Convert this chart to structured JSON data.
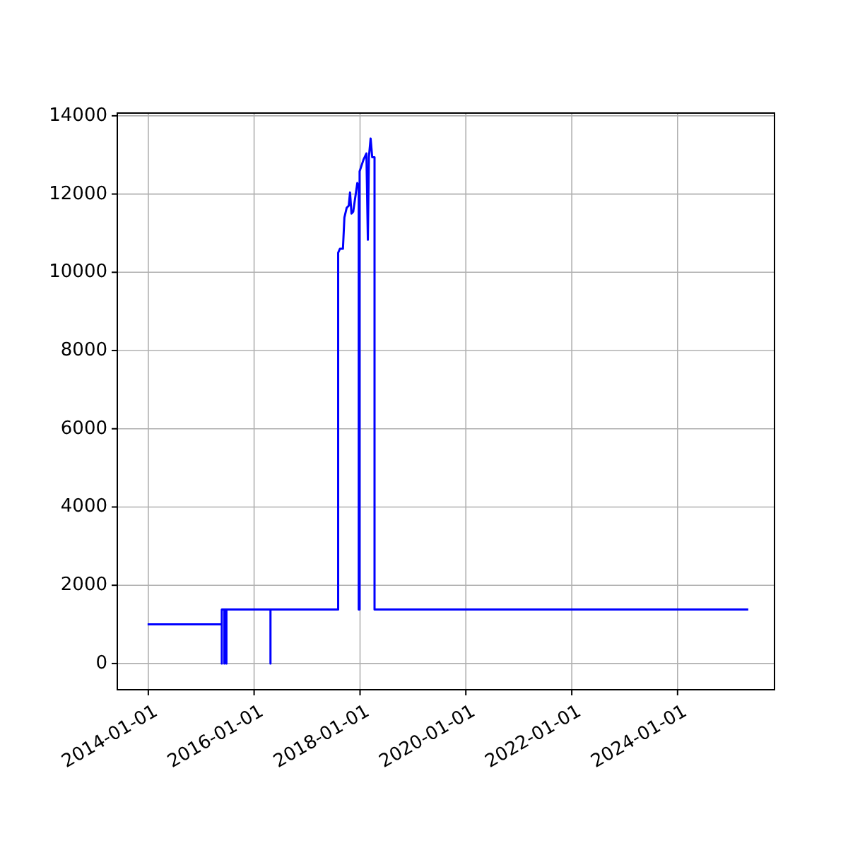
{
  "chart_data": {
    "type": "line",
    "grid": true,
    "xlim": [
      "2013-06-01",
      "2025-10-31"
    ],
    "ylim": [
      -670,
      14070
    ],
    "xticks": [
      "2014-01-01",
      "2016-01-01",
      "2018-01-01",
      "2020-01-01",
      "2022-01-01",
      "2024-01-01"
    ],
    "yticks": [
      0,
      2000,
      4000,
      6000,
      8000,
      10000,
      12000,
      14000
    ],
    "series": [
      {
        "color": "#0000ff",
        "x": [
          "2013-12-27",
          "2015-05-23",
          "2015-05-23",
          "2015-05-23",
          "2015-06-10",
          "2015-06-10",
          "2015-06-10",
          "2015-06-24",
          "2015-06-24",
          "2015-06-24",
          "2016-04-23",
          "2016-04-23",
          "2016-04-23",
          "2017-08-03",
          "2017-08-03",
          "2017-08-15",
          "2017-09-05",
          "2017-09-15",
          "2017-10-01",
          "2017-10-15",
          "2017-10-24",
          "2017-11-03",
          "2017-11-15",
          "2017-12-13",
          "2017-12-23",
          "2017-12-23",
          "2017-12-29",
          "2017-12-29",
          "2018-01-25",
          "2018-02-14",
          "2018-02-24",
          "2018-03-03",
          "2018-03-15",
          "2018-03-26",
          "2018-04-11",
          "2018-04-11",
          "2025-05-03"
        ],
        "values": [
          1000,
          1000,
          0,
          1380,
          1380,
          0,
          1380,
          1380,
          0,
          1380,
          1380,
          0,
          1380,
          1380,
          10500,
          10600,
          10600,
          11400,
          11650,
          11700,
          12040,
          11500,
          11550,
          12280,
          12200,
          1380,
          1380,
          12580,
          12880,
          13040,
          10830,
          12940,
          13420,
          12940,
          12940,
          1380,
          1380
        ]
      }
    ]
  }
}
